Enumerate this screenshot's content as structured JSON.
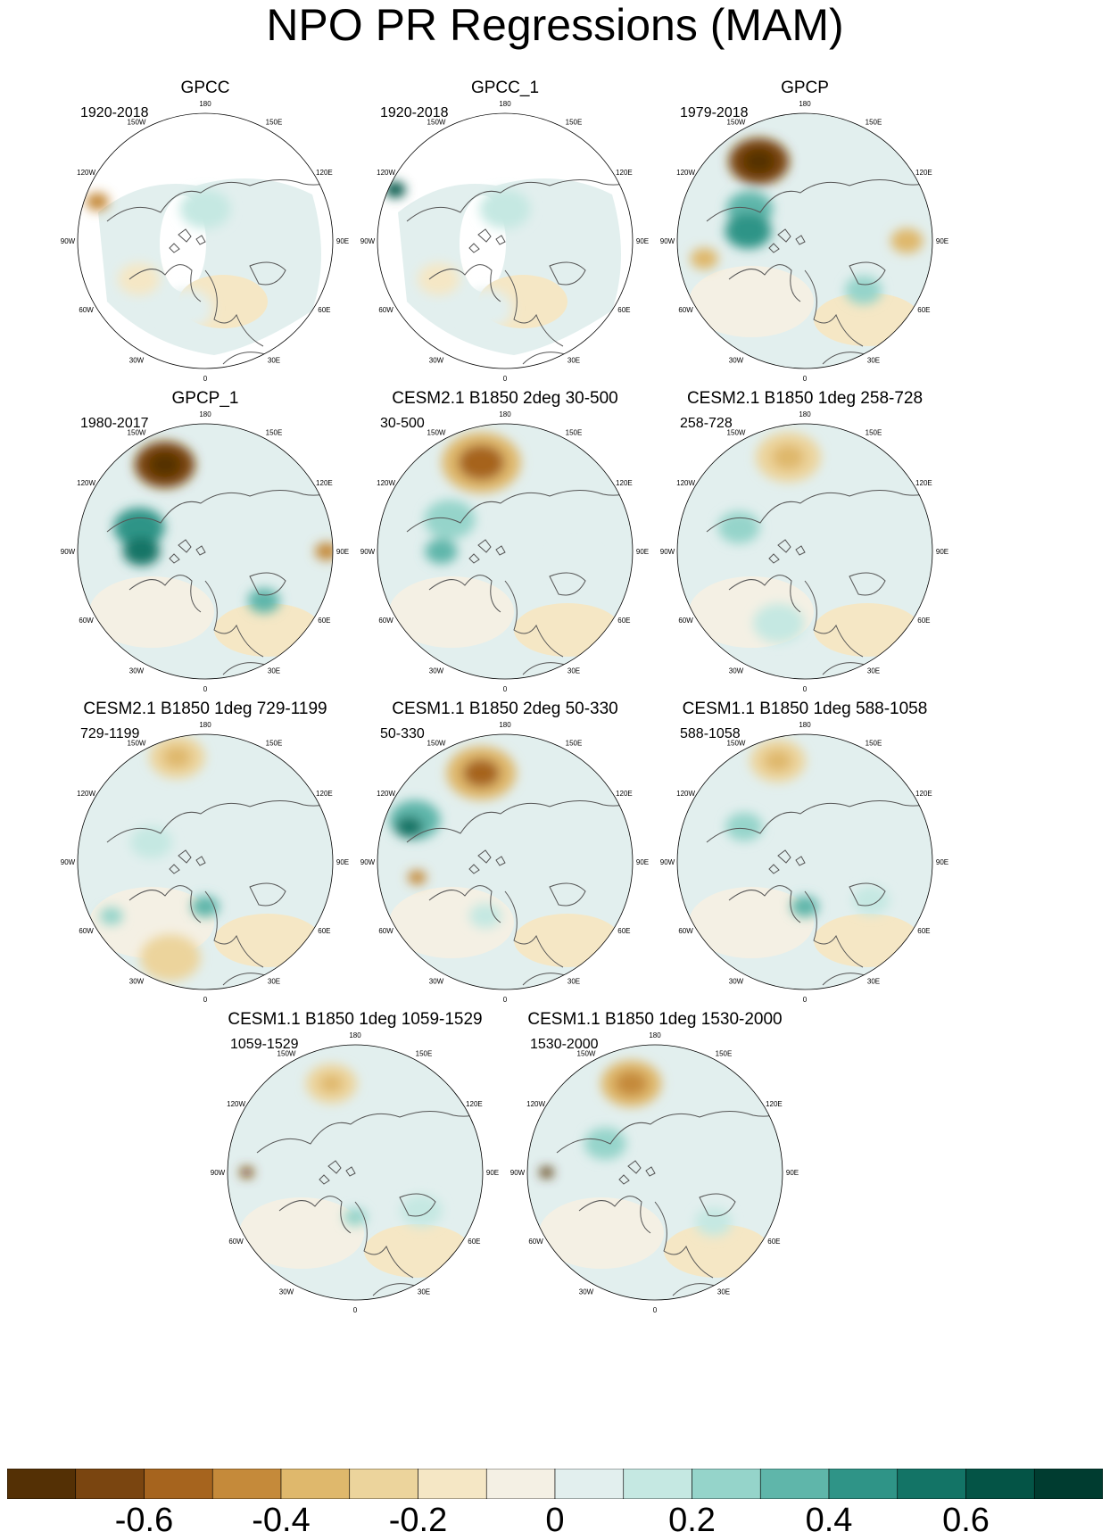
{
  "title": "NPO PR Regressions (MAM)",
  "chart_data": {
    "type": "heatmap",
    "projection": "north-polar-stereographic",
    "variable": "precipitation regression on NPO index",
    "panels": [
      {
        "title": "GPCC",
        "period": "1920-2018"
      },
      {
        "title": "GPCC_1",
        "period": "1920-2018"
      },
      {
        "title": "GPCP",
        "period": "1979-2018"
      },
      {
        "title": "GPCP_1",
        "period": "1980-2017"
      },
      {
        "title": "CESM2.1 B1850 2deg 30-500",
        "period": "30-500"
      },
      {
        "title": "CESM2.1 B1850 1deg 258-728",
        "period": "258-728"
      },
      {
        "title": "CESM2.1 B1850 1deg 729-1199",
        "period": "729-1199"
      },
      {
        "title": "CESM1.1 B1850 2deg 50-330",
        "period": "50-330"
      },
      {
        "title": "CESM1.1 B1850 1deg 588-1058",
        "period": "588-1058"
      },
      {
        "title": "CESM1.1 B1850 1deg 1059-1529",
        "period": "1059-1529"
      },
      {
        "title": "CESM1.1 B1850 1deg 1530-2000",
        "period": "1530-2000"
      }
    ],
    "longitude_labels": [
      "180",
      "150E",
      "120E",
      "90E",
      "60E",
      "30E",
      "0",
      "30W",
      "60W",
      "90W",
      "120W",
      "150W"
    ],
    "colorbar": {
      "levels": [
        -0.7,
        -0.6,
        -0.5,
        -0.4,
        -0.3,
        -0.2,
        -0.1,
        0,
        0.1,
        0.2,
        0.3,
        0.4,
        0.5,
        0.6,
        0.7
      ],
      "tick_labels": [
        "-0.6",
        "-0.4",
        "-0.2",
        "0",
        "0.2",
        "0.4",
        "0.6"
      ],
      "tick_values": [
        -0.6,
        -0.4,
        -0.2,
        0,
        0.2,
        0.4,
        0.6
      ],
      "colors": [
        "#543005",
        "#7a4510",
        "#a6641e",
        "#c58a3a",
        "#dfb86c",
        "#ecd49c",
        "#f5e7c5",
        "#f4f0e4",
        "#e2efee",
        "#c5e8e2",
        "#95d4ca",
        "#5fb6aa",
        "#2f9487",
        "#137466",
        "#045446",
        "#003c30"
      ]
    }
  }
}
